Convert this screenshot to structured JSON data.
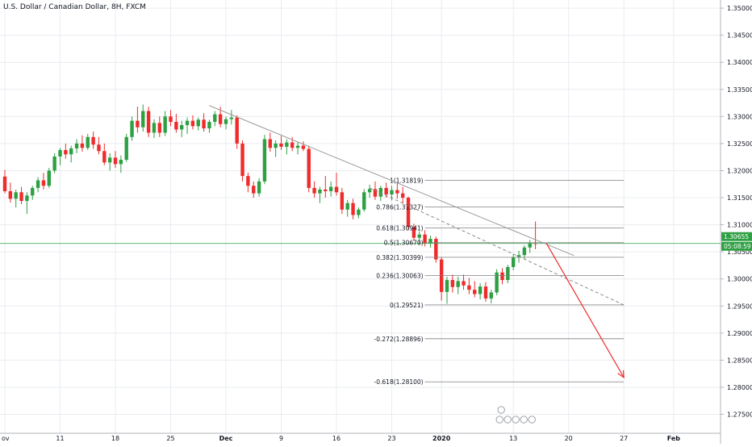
{
  "title": "U.S. Dollar / Canadian Dollar, 8H, FXCM",
  "colors": {
    "up": "#26a69a",
    "up_body": "#2ea043",
    "down": "#ef2b2b",
    "grid": "#e9ecf1",
    "axis_text": "#131722",
    "price_line": "#2ea043",
    "trendline": "#888888",
    "fib_line": "#808080",
    "projection": "#ef2b2b"
  },
  "price_axis": {
    "current_price_label": "1.30655",
    "countdown_label": "05:08:59"
  },
  "chart_data": {
    "type": "candlestick",
    "title": "U.S. Dollar / Canadian Dollar, 8H, FXCM",
    "ylim": [
      1.2715,
      1.3515
    ],
    "y_ticks": [
      "1.35000",
      "1.34500",
      "1.34000",
      "1.33500",
      "1.33000",
      "1.32500",
      "1.32000",
      "1.31500",
      "1.31000",
      "1.30500",
      "1.30000",
      "1.29500",
      "1.29000",
      "1.28500",
      "1.28000",
      "1.27500"
    ],
    "x_ticks": [
      "ov",
      "11",
      "18",
      "25",
      "Dec",
      "9",
      "16",
      "23",
      "2020",
      "13",
      "20",
      "27",
      "Feb"
    ],
    "x_tick_positions": [
      0,
      10,
      20,
      30,
      40,
      50,
      60,
      70,
      79,
      92,
      102,
      112,
      121
    ],
    "last_price": 1.30655,
    "candles": [
      [
        1.3189,
        1.3201,
        1.3158,
        1.3162
      ],
      [
        1.3162,
        1.3178,
        1.3141,
        1.3148
      ],
      [
        1.3148,
        1.3165,
        1.3132,
        1.316
      ],
      [
        1.316,
        1.317,
        1.3138,
        1.3144
      ],
      [
        1.3144,
        1.316,
        1.312,
        1.3154
      ],
      [
        1.3154,
        1.3172,
        1.3146,
        1.3168
      ],
      [
        1.3168,
        1.3188,
        1.316,
        1.3182
      ],
      [
        1.3182,
        1.3196,
        1.3165,
        1.3172
      ],
      [
        1.3172,
        1.3205,
        1.3168,
        1.32
      ],
      [
        1.32,
        1.3232,
        1.3195,
        1.3226
      ],
      [
        1.3226,
        1.3242,
        1.321,
        1.3238
      ],
      [
        1.3238,
        1.325,
        1.3222,
        1.323
      ],
      [
        1.323,
        1.3246,
        1.3215,
        1.3241
      ],
      [
        1.3241,
        1.3258,
        1.3232,
        1.325
      ],
      [
        1.325,
        1.3265,
        1.3235,
        1.3242
      ],
      [
        1.3242,
        1.3268,
        1.3238,
        1.3262
      ],
      [
        1.3262,
        1.3272,
        1.324,
        1.3248
      ],
      [
        1.3248,
        1.3262,
        1.323,
        1.3236
      ],
      [
        1.3236,
        1.325,
        1.321,
        1.3215
      ],
      [
        1.3215,
        1.3232,
        1.32,
        1.3224
      ],
      [
        1.3224,
        1.3236,
        1.3205,
        1.3212
      ],
      [
        1.3212,
        1.3228,
        1.3196,
        1.322
      ],
      [
        1.322,
        1.3268,
        1.3216,
        1.3262
      ],
      [
        1.3262,
        1.33,
        1.3255,
        1.3292
      ],
      [
        1.3292,
        1.3318,
        1.327,
        1.328
      ],
      [
        1.328,
        1.3322,
        1.3272,
        1.331
      ],
      [
        1.331,
        1.3318,
        1.3262,
        1.327
      ],
      [
        1.327,
        1.3295,
        1.326,
        1.3288
      ],
      [
        1.3288,
        1.33,
        1.3262,
        1.327
      ],
      [
        1.327,
        1.331,
        1.3264,
        1.33
      ],
      [
        1.33,
        1.3312,
        1.3282,
        1.329
      ],
      [
        1.329,
        1.3305,
        1.327,
        1.3276
      ],
      [
        1.3276,
        1.3292,
        1.3262,
        1.3284
      ],
      [
        1.3284,
        1.3298,
        1.3268,
        1.3292
      ],
      [
        1.3292,
        1.3302,
        1.3276,
        1.3282
      ],
      [
        1.3282,
        1.3298,
        1.3274,
        1.3294
      ],
      [
        1.3294,
        1.3306,
        1.3272,
        1.3278
      ],
      [
        1.3278,
        1.3294,
        1.327,
        1.329
      ],
      [
        1.329,
        1.331,
        1.3282,
        1.3304
      ],
      [
        1.3304,
        1.3318,
        1.328,
        1.3286
      ],
      [
        1.3286,
        1.33,
        1.3276,
        1.3295
      ],
      [
        1.3295,
        1.3312,
        1.3285,
        1.3298
      ],
      [
        1.3298,
        1.3302,
        1.324,
        1.325
      ],
      [
        1.325,
        1.3256,
        1.318,
        1.319
      ],
      [
        1.319,
        1.3196,
        1.316,
        1.3172
      ],
      [
        1.3172,
        1.318,
        1.315,
        1.3158
      ],
      [
        1.3158,
        1.3186,
        1.3152,
        1.318
      ],
      [
        1.318,
        1.3266,
        1.3175,
        1.3258
      ],
      [
        1.3258,
        1.327,
        1.3235,
        1.3242
      ],
      [
        1.3242,
        1.3256,
        1.3225,
        1.325
      ],
      [
        1.325,
        1.3264,
        1.3238,
        1.3244
      ],
      [
        1.3244,
        1.3258,
        1.323,
        1.3252
      ],
      [
        1.3252,
        1.3262,
        1.3236,
        1.3242
      ],
      [
        1.3242,
        1.3252,
        1.323,
        1.3246
      ],
      [
        1.3246,
        1.3254,
        1.3236,
        1.324
      ],
      [
        1.324,
        1.3246,
        1.316,
        1.3168
      ],
      [
        1.3168,
        1.318,
        1.315,
        1.3158
      ],
      [
        1.3158,
        1.317,
        1.314,
        1.3165
      ],
      [
        1.3165,
        1.319,
        1.315,
        1.3162
      ],
      [
        1.3162,
        1.318,
        1.3152,
        1.317
      ],
      [
        1.317,
        1.3196,
        1.3154,
        1.316
      ],
      [
        1.316,
        1.3168,
        1.312,
        1.3128
      ],
      [
        1.3128,
        1.3146,
        1.3115,
        1.314
      ],
      [
        1.314,
        1.3148,
        1.311,
        1.3118
      ],
      [
        1.3118,
        1.3132,
        1.3112,
        1.3128
      ],
      [
        1.3128,
        1.3166,
        1.3124,
        1.316
      ],
      [
        1.316,
        1.3174,
        1.315,
        1.3166
      ],
      [
        1.3166,
        1.318,
        1.3146,
        1.3152
      ],
      [
        1.3152,
        1.3172,
        1.3144,
        1.3168
      ],
      [
        1.3168,
        1.3178,
        1.315,
        1.3156
      ],
      [
        1.3156,
        1.3172,
        1.3145,
        1.3164
      ],
      [
        1.3164,
        1.3176,
        1.3148,
        1.3158
      ],
      [
        1.3158,
        1.317,
        1.314,
        1.315
      ],
      [
        1.315,
        1.3152,
        1.309,
        1.3096
      ],
      [
        1.3096,
        1.3102,
        1.307,
        1.3076
      ],
      [
        1.3076,
        1.3088,
        1.3064,
        1.3082
      ],
      [
        1.3082,
        1.309,
        1.306,
        1.3066
      ],
      [
        1.3066,
        1.308,
        1.3058,
        1.3074
      ],
      [
        1.3074,
        1.3078,
        1.303,
        1.3036
      ],
      [
        1.3036,
        1.304,
        1.296,
        1.2976
      ],
      [
        1.2976,
        1.3004,
        1.2954,
        1.2998
      ],
      [
        1.2998,
        1.3008,
        1.2975,
        1.2985
      ],
      [
        1.2985,
        1.3004,
        1.2972,
        1.2996
      ],
      [
        1.2996,
        1.3008,
        1.298,
        1.2988
      ],
      [
        1.2988,
        1.3002,
        1.2972,
        1.298
      ],
      [
        1.298,
        1.2996,
        1.2966,
        1.2972
      ],
      [
        1.2972,
        1.2992,
        1.2962,
        1.2986
      ],
      [
        1.2986,
        1.2994,
        1.2958,
        1.2964
      ],
      [
        1.2964,
        1.298,
        1.2955,
        1.2975
      ],
      [
        1.2975,
        1.3018,
        1.297,
        1.3012
      ],
      [
        1.3012,
        1.302,
        1.299,
        1.2998
      ],
      [
        1.2998,
        1.3026,
        1.2992,
        1.3022
      ],
      [
        1.3022,
        1.3046,
        1.3016,
        1.304
      ],
      [
        1.304,
        1.3052,
        1.303,
        1.3044
      ],
      [
        1.3044,
        1.3062,
        1.3036,
        1.3058
      ],
      [
        1.3058,
        1.3072,
        1.3048,
        1.3066
      ],
      [
        1.3066,
        1.3106,
        1.3055,
        1.30655
      ]
    ],
    "trendlines": [
      {
        "style": "solid",
        "from": {
          "i": 37,
          "price": 1.332
        },
        "to": {
          "i": 103,
          "price": 1.3043
        }
      },
      {
        "style": "dashed",
        "from": {
          "i": 66,
          "price": 1.3168
        },
        "to": {
          "i": 112,
          "price": 1.2952
        }
      }
    ],
    "projection_arrow": {
      "from": {
        "i": 98,
        "price": 1.30655
      },
      "to": {
        "i": 112,
        "price": 1.2818
      }
    },
    "fib_levels": [
      {
        "label": "1(1.31819)",
        "price": 1.31819
      },
      {
        "label": "0.786(1.31327)",
        "price": 1.31327
      },
      {
        "label": "0.618(1.30941)",
        "price": 1.30941
      },
      {
        "label": "0.5(1.30670)",
        "price": 1.3067
      },
      {
        "label": "0.382(1.30399)",
        "price": 1.30399
      },
      {
        "label": "0.236(1.30063)",
        "price": 1.30063
      },
      {
        "label": "0(1.29521)",
        "price": 1.29521
      },
      {
        "label": "-0.272(1.28896)",
        "price": 1.28896
      },
      {
        "label": "-0.618(1.28100)",
        "price": 1.281
      }
    ],
    "fib_range": {
      "from_i": 76,
      "to_i": 112
    }
  }
}
